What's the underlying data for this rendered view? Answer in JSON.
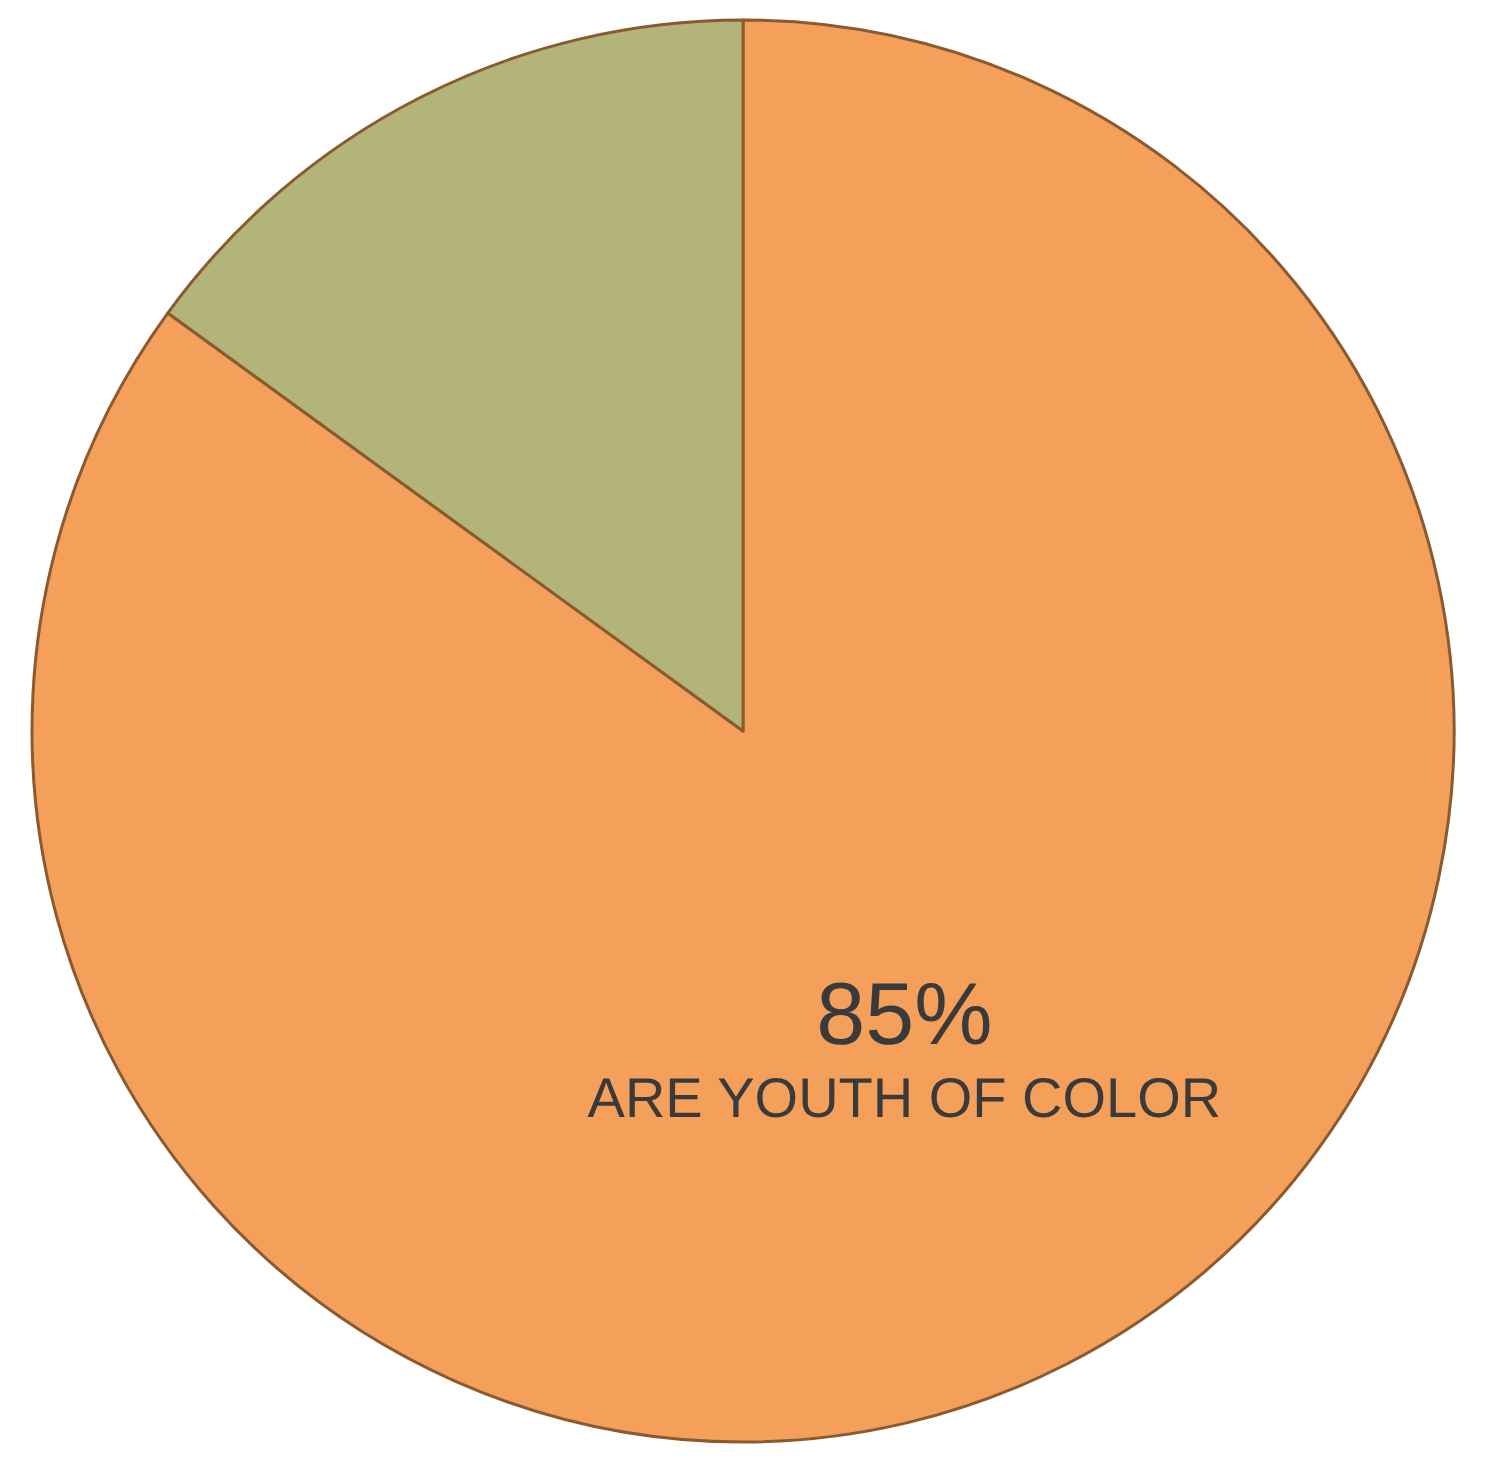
{
  "chart_data": {
    "type": "pie",
    "categories": [
      "ARE YOUTH OF COLOR",
      null
    ],
    "values": [
      85,
      15
    ],
    "value_labels": [
      "85%",
      null
    ],
    "colors": [
      "#f5a05a",
      "#b2b47a"
    ]
  }
}
